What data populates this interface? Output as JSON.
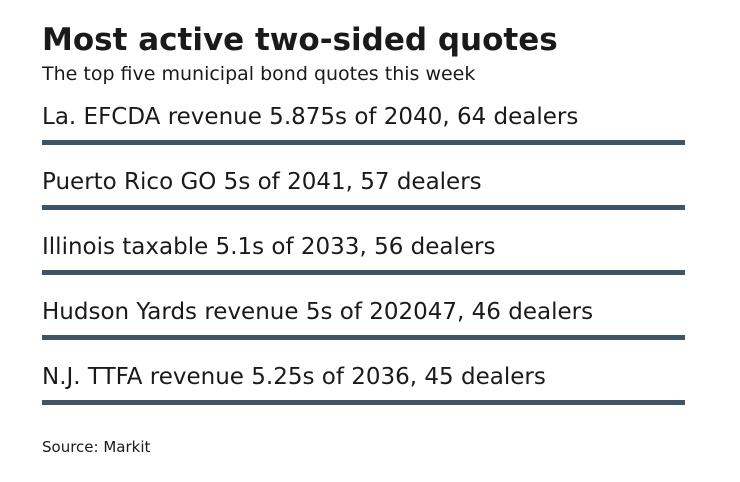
{
  "chart_data": {
    "type": "table",
    "title": "Most active two-sided quotes",
    "subtitle": "The top five municipal bond quotes this week",
    "rows": [
      {
        "label": "La. EFCDA revenue 5.875s of 2040, 64 dealers"
      },
      {
        "label": "Puerto Rico GO 5s of 2041, 57 dealers"
      },
      {
        "label": "Illinois taxable 5.1s of 2033, 56 dealers"
      },
      {
        "label": "Hudson Yards revenue 5s of 202047, 46 dealers"
      },
      {
        "label": "N.J. TTFA revenue 5.25s of 2036, 45 dealers"
      }
    ],
    "source": "Source: Markit",
    "bar_color": "#3f5566"
  }
}
